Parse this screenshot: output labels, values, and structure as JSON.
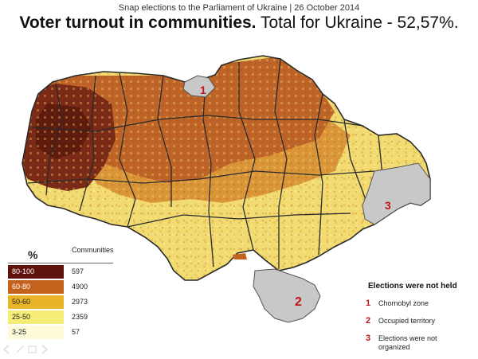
{
  "header": {
    "subtitle": "Snap elections to the Parliament of Ukraine | 26 October 2014",
    "title_bold": "Voter turnout in communities.",
    "title_rest": " Total for Ukraine - 52,57%."
  },
  "legend": {
    "header_percent": "%",
    "header_communities": "Communities",
    "rows": [
      {
        "range": "80-100",
        "count": "597",
        "color": "#5e120b",
        "text_color": "#ffffff"
      },
      {
        "range": "60-80",
        "count": "4900",
        "color": "#c4611c",
        "text_color": "#ffffff"
      },
      {
        "range": "50-60",
        "count": "2973",
        "color": "#eab42a",
        "text_color": "#222222"
      },
      {
        "range": "25-50",
        "count": "2359",
        "color": "#f6ec78",
        "text_color": "#222222"
      },
      {
        "range": "3-25",
        "count": "57",
        "color": "#fdfbd9",
        "text_color": "#222222"
      }
    ]
  },
  "not_held": {
    "title": "Elections were not held",
    "items": [
      {
        "num": "1",
        "text": "Chornobyl zone"
      },
      {
        "num": "2",
        "text": "Occupied territory"
      },
      {
        "num": "3",
        "text": "Elections were not organized"
      }
    ]
  },
  "map": {
    "markers": [
      "1",
      "2",
      "3"
    ],
    "colors": {
      "west": "#7a2a16",
      "north_central": "#bc6026",
      "center": "#d98a36",
      "south_east": "#f0dc72",
      "gray": "#c8c8c8",
      "border": "#2a2a2a"
    }
  }
}
